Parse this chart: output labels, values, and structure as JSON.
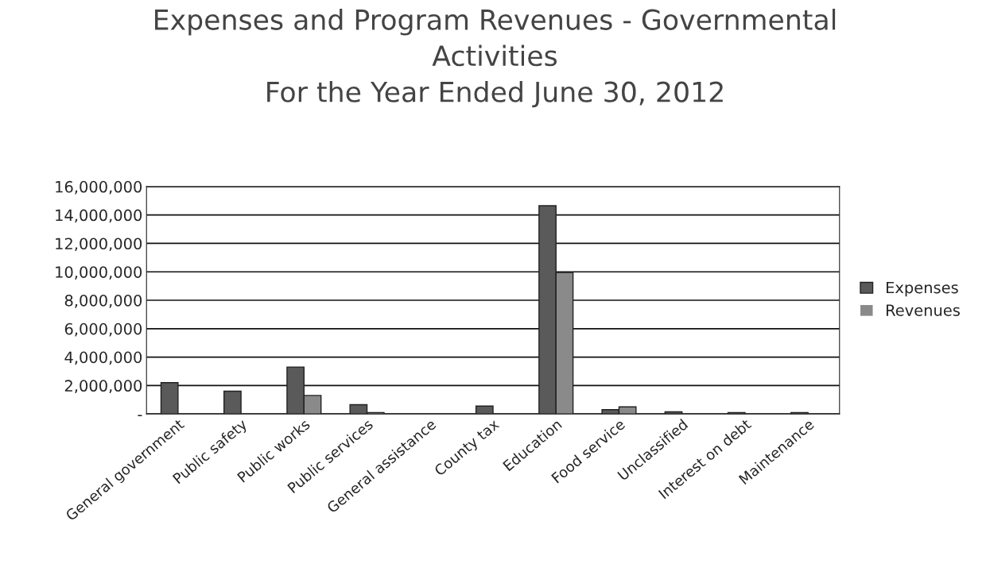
{
  "chart_data": {
    "type": "bar",
    "title": "Expenses and Program Revenues - Governmental\nActivities\nFor the Year Ended June 30, 2012",
    "categories": [
      "General government",
      "Public safety",
      "Public works",
      "Public services",
      "General assistance",
      "County tax",
      "Education",
      "Food service",
      "Unclassified",
      "Interest on debt",
      "Maintenance"
    ],
    "series": [
      {
        "name": "Expenses",
        "color": "#5a5a5a",
        "values": [
          2200000,
          1600000,
          3300000,
          650000,
          0,
          550000,
          14650000,
          300000,
          150000,
          100000,
          100000
        ]
      },
      {
        "name": "Revenues",
        "color": "#8a8a8a",
        "values": [
          0,
          0,
          1300000,
          100000,
          0,
          0,
          9950000,
          500000,
          0,
          0,
          0
        ]
      }
    ],
    "ylim": [
      0,
      16000000
    ],
    "yticks": [
      {
        "value": 0,
        "label": "-"
      },
      {
        "value": 2000000,
        "label": "2,000,000"
      },
      {
        "value": 4000000,
        "label": "4,000,000"
      },
      {
        "value": 6000000,
        "label": "6,000,000"
      },
      {
        "value": 8000000,
        "label": "8,000,000"
      },
      {
        "value": 10000000,
        "label": "10,000,000"
      },
      {
        "value": 12000000,
        "label": "12,000,000"
      },
      {
        "value": 14000000,
        "label": "14,000,000"
      },
      {
        "value": 16000000,
        "label": "16,000,000"
      }
    ],
    "grid": "y",
    "legend": "right"
  }
}
